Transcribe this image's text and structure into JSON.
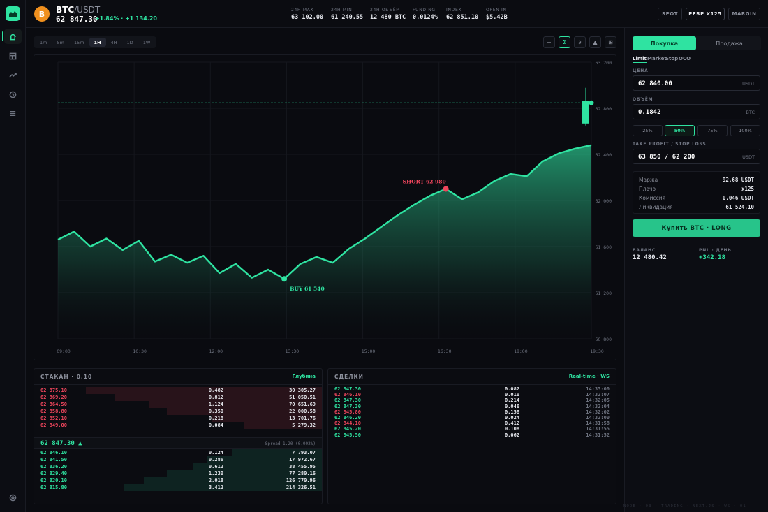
{
  "header": {
    "coin_letter": "B",
    "base": "BTC",
    "quote": "/USDT",
    "last_price": "62 847.30",
    "change": "+1.84% · +1 134.20",
    "stats": [
      {
        "label": "24H MAX",
        "value": "63 102.00"
      },
      {
        "label": "24H MIN",
        "value": "61 240.55"
      },
      {
        "label": "24H ОБЪЁМ",
        "value": "12 480 BTC"
      },
      {
        "label": "FUNDING",
        "value": "0.0124%"
      },
      {
        "label": "INDEX",
        "value": "62 851.10"
      },
      {
        "label": "OPEN INT.",
        "value": "$5.42B"
      }
    ],
    "markets": [
      "SPOT",
      "PERP X125",
      "MARGIN"
    ],
    "active_market": "PERP X125"
  },
  "sidebar": {
    "icons": [
      "home-icon",
      "grid-icon",
      "trend-icon",
      "clock-icon",
      "list-icon",
      "settings-icon"
    ]
  },
  "chart_toolbar": {
    "timeframes": [
      "1m",
      "5m",
      "15m",
      "1H",
      "4H",
      "1D",
      "1W"
    ],
    "active_timeframe": "1H",
    "tools": [
      "+",
      "Σ",
      "∂",
      "▲",
      "⊞"
    ],
    "active_tool": "Σ"
  },
  "chart_data": {
    "type": "area",
    "x_ticks": [
      "09:00",
      "10:30",
      "12:00",
      "13:30",
      "15:00",
      "16:30",
      "18:00",
      "19:30"
    ],
    "y_ticks": [
      "63 200",
      "62 800",
      "62 400",
      "62 000",
      "61 600",
      "61 200",
      "60 800"
    ],
    "ylim": [
      60800,
      63200
    ],
    "series": [
      {
        "values": [
          61660,
          61730,
          61600,
          61670,
          61570,
          61650,
          61470,
          61530,
          61460,
          61520,
          61370,
          61450,
          61330,
          61400,
          61320,
          61450,
          61510,
          61460,
          61580,
          61670,
          61770,
          61870,
          61960,
          62040,
          62100,
          62010,
          62070,
          62170,
          62230,
          62210,
          62340,
          62410,
          62450,
          62480
        ]
      }
    ],
    "current_price": 62847.3,
    "annotations": [
      {
        "label": "BUY 61 540",
        "index": 14
      },
      {
        "label": "SHORT 62 980",
        "index": 24
      }
    ]
  },
  "orderbook": {
    "title": "СТАКАН · 0.10",
    "depth_label": "Глубина",
    "asks": [
      {
        "price": "62 875.10",
        "size": "0.482",
        "total": "30 305.27",
        "fill": 0.82
      },
      {
        "price": "62 869.20",
        "size": "0.812",
        "total": "51 050.51",
        "fill": 0.72
      },
      {
        "price": "62 864.50",
        "size": "1.124",
        "total": "70 651.69",
        "fill": 0.6
      },
      {
        "price": "62 858.80",
        "size": "0.350",
        "total": "22 000.58",
        "fill": 0.54
      },
      {
        "price": "62 852.10",
        "size": "0.218",
        "total": "13 701.76",
        "fill": 0.38
      },
      {
        "price": "62 849.00",
        "size": "0.084",
        "total": "5 279.32",
        "fill": 0.27
      }
    ],
    "mid_price": "62 847.30 ▲",
    "spread": "Spread 1.20 (0.002%)",
    "bids": [
      {
        "price": "62 846.10",
        "size": "0.124",
        "total": "7 793.07",
        "fill": 0.31
      },
      {
        "price": "62 841.50",
        "size": "0.286",
        "total": "17 972.67",
        "fill": 0.4
      },
      {
        "price": "62 836.20",
        "size": "0.612",
        "total": "38 455.95",
        "fill": 0.45
      },
      {
        "price": "62 829.40",
        "size": "1.230",
        "total": "77 280.16",
        "fill": 0.54
      },
      {
        "price": "62 820.10",
        "size": "2.018",
        "total": "126 770.96",
        "fill": 0.62
      },
      {
        "price": "62 815.80",
        "size": "3.412",
        "total": "214 326.51",
        "fill": 0.69
      }
    ]
  },
  "trades": {
    "title": "СДЕЛКИ",
    "realtime_label": "Real-time · WS",
    "rows": [
      {
        "price": "62 847.30",
        "size": "0.082",
        "time": "14:33:00",
        "side": "buy"
      },
      {
        "price": "62 846.10",
        "size": "0.010",
        "time": "14:32:07",
        "side": "sell"
      },
      {
        "price": "62 847.30",
        "size": "0.214",
        "time": "14:32:05",
        "side": "buy"
      },
      {
        "price": "62 847.30",
        "size": "0.046",
        "time": "14:32:04",
        "side": "buy"
      },
      {
        "price": "62 845.80",
        "size": "0.158",
        "time": "14:32:02",
        "side": "sell"
      },
      {
        "price": "62 846.20",
        "size": "0.024",
        "time": "14:32:00",
        "side": "buy"
      },
      {
        "price": "62 844.10",
        "size": "0.412",
        "time": "14:31:58",
        "side": "sell"
      },
      {
        "price": "62 845.20",
        "size": "0.108",
        "time": "14:31:55",
        "side": "buy"
      },
      {
        "price": "62 845.50",
        "size": "0.062",
        "time": "14:31:52",
        "side": "buy"
      }
    ]
  },
  "order_form": {
    "buy_tab": "Покупка",
    "sell_tab": "Продажа",
    "order_types": [
      "Limit",
      "Market",
      "Stop",
      "OCO"
    ],
    "active_order_type": "Limit",
    "price_label": "ЦЕНА",
    "price_value": "62 840.00",
    "price_unit": "USDT",
    "volume_label": "ОБЪЁМ",
    "volume_value": "0.1842",
    "volume_unit": "BTC",
    "percents": [
      "25%",
      "50%",
      "75%",
      "100%"
    ],
    "active_percent": "50%",
    "tpsl_label": "TAKE PROFIT / STOP LOSS",
    "tpsl_value": "63 850 / 62 200",
    "tpsl_unit": "USDT",
    "summary": [
      {
        "label": "Маржа",
        "value": "92.68 USDT"
      },
      {
        "label": "Плечо",
        "value": "x125"
      },
      {
        "label": "Комиссия",
        "value": "0.046 USDT"
      },
      {
        "label": "Ликвидация",
        "value": "61 524.10"
      }
    ],
    "submit_label": "Купить BTC · LONG",
    "balance_label": "БАЛАНС",
    "balance_value": "12 480.42",
    "pnl_label": "PNL · ДЕНЬ",
    "pnl_value": "+342.18"
  },
  "footer": "NODE · 03 · TRADING · NEXT.JS · WS · 01",
  "colors": {
    "accent": "#2fe3a1",
    "down": "#f0465d",
    "bg": "#0a0b10"
  }
}
